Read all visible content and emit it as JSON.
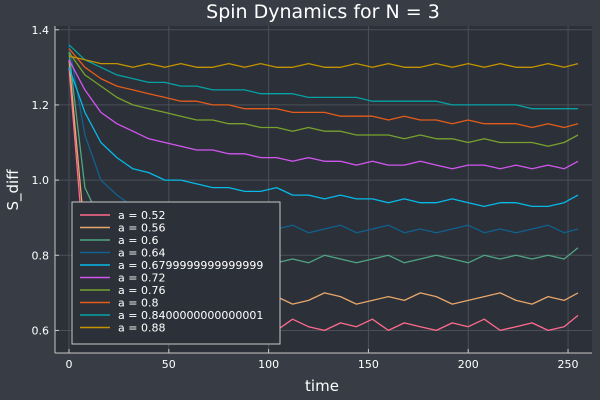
{
  "chart_data": {
    "type": "line",
    "title": "Spin Dynamics for N = 3",
    "xlabel": "time",
    "ylabel": "S_diff",
    "xlim": [
      -7,
      262
    ],
    "ylim": [
      0.54,
      1.41
    ],
    "xticks": [
      0,
      50,
      100,
      150,
      200,
      250
    ],
    "yticks": [
      0.6,
      0.8,
      1.0,
      1.2,
      1.4
    ],
    "ytick_labels": [
      "0.6",
      "0.8",
      "1.0",
      "1.2",
      "1.4"
    ],
    "grid": true,
    "legend": "bottom-left",
    "x": [
      0,
      8,
      16,
      24,
      32,
      40,
      48,
      56,
      64,
      72,
      80,
      88,
      96,
      104,
      112,
      120,
      128,
      136,
      144,
      152,
      160,
      168,
      176,
      184,
      192,
      200,
      208,
      216,
      224,
      232,
      240,
      248,
      255
    ],
    "series": [
      {
        "name": "a = 0.52",
        "color": "#ff6a8d",
        "values": [
          1.3,
          0.78,
          0.7,
          0.66,
          0.64,
          0.62,
          0.61,
          0.6,
          0.62,
          0.6,
          0.61,
          0.59,
          0.62,
          0.6,
          0.63,
          0.61,
          0.6,
          0.62,
          0.61,
          0.63,
          0.6,
          0.62,
          0.61,
          0.6,
          0.62,
          0.61,
          0.63,
          0.6,
          0.61,
          0.62,
          0.6,
          0.61,
          0.64
        ]
      },
      {
        "name": "a = 0.56",
        "color": "#e6a76c",
        "values": [
          1.32,
          0.85,
          0.76,
          0.72,
          0.7,
          0.69,
          0.68,
          0.67,
          0.68,
          0.69,
          0.67,
          0.66,
          0.68,
          0.69,
          0.67,
          0.68,
          0.7,
          0.69,
          0.67,
          0.68,
          0.69,
          0.68,
          0.7,
          0.69,
          0.67,
          0.68,
          0.69,
          0.7,
          0.68,
          0.67,
          0.69,
          0.68,
          0.7
        ]
      },
      {
        "name": "a = 0.6",
        "color": "#4fa583",
        "values": [
          1.34,
          0.98,
          0.89,
          0.84,
          0.82,
          0.8,
          0.79,
          0.78,
          0.79,
          0.78,
          0.78,
          0.79,
          0.77,
          0.78,
          0.79,
          0.78,
          0.8,
          0.79,
          0.78,
          0.79,
          0.8,
          0.78,
          0.79,
          0.8,
          0.79,
          0.78,
          0.8,
          0.79,
          0.8,
          0.79,
          0.8,
          0.79,
          0.82
        ]
      },
      {
        "name": "a = 0.64",
        "color": "#11618e",
        "values": [
          1.36,
          1.12,
          1.0,
          0.96,
          0.93,
          0.91,
          0.9,
          0.89,
          0.88,
          0.88,
          0.87,
          0.88,
          0.86,
          0.87,
          0.88,
          0.86,
          0.87,
          0.88,
          0.86,
          0.87,
          0.88,
          0.86,
          0.87,
          0.86,
          0.87,
          0.88,
          0.86,
          0.87,
          0.86,
          0.87,
          0.88,
          0.86,
          0.87
        ]
      },
      {
        "name": "a = 0.6799999999999999",
        "color": "#07b9e8",
        "values": [
          1.3,
          1.18,
          1.1,
          1.06,
          1.03,
          1.02,
          1.0,
          1.0,
          0.99,
          0.98,
          0.98,
          0.97,
          0.97,
          0.98,
          0.96,
          0.96,
          0.95,
          0.96,
          0.95,
          0.95,
          0.94,
          0.95,
          0.94,
          0.94,
          0.95,
          0.94,
          0.93,
          0.94,
          0.94,
          0.93,
          0.93,
          0.94,
          0.96
        ]
      },
      {
        "name": "a = 0.72",
        "color": "#d355f1",
        "values": [
          1.32,
          1.24,
          1.18,
          1.15,
          1.13,
          1.11,
          1.1,
          1.09,
          1.08,
          1.08,
          1.07,
          1.07,
          1.06,
          1.06,
          1.05,
          1.06,
          1.05,
          1.05,
          1.04,
          1.05,
          1.04,
          1.04,
          1.05,
          1.04,
          1.03,
          1.04,
          1.04,
          1.03,
          1.04,
          1.03,
          1.04,
          1.03,
          1.05
        ]
      },
      {
        "name": "a = 0.76",
        "color": "#78a22d",
        "values": [
          1.34,
          1.28,
          1.25,
          1.22,
          1.2,
          1.19,
          1.18,
          1.17,
          1.16,
          1.16,
          1.15,
          1.15,
          1.14,
          1.14,
          1.13,
          1.14,
          1.13,
          1.13,
          1.12,
          1.12,
          1.12,
          1.11,
          1.12,
          1.11,
          1.11,
          1.1,
          1.11,
          1.1,
          1.1,
          1.1,
          1.09,
          1.1,
          1.12
        ]
      },
      {
        "name": "a = 0.8",
        "color": "#e45c1b",
        "values": [
          1.35,
          1.3,
          1.27,
          1.25,
          1.24,
          1.23,
          1.22,
          1.21,
          1.21,
          1.2,
          1.2,
          1.19,
          1.19,
          1.19,
          1.18,
          1.18,
          1.18,
          1.17,
          1.17,
          1.17,
          1.16,
          1.17,
          1.16,
          1.16,
          1.15,
          1.16,
          1.15,
          1.15,
          1.15,
          1.14,
          1.15,
          1.14,
          1.15
        ]
      },
      {
        "name": "a = 0.8400000000000001",
        "color": "#05a2a5",
        "values": [
          1.36,
          1.32,
          1.3,
          1.28,
          1.27,
          1.26,
          1.26,
          1.25,
          1.25,
          1.24,
          1.24,
          1.24,
          1.23,
          1.23,
          1.23,
          1.22,
          1.22,
          1.22,
          1.22,
          1.21,
          1.21,
          1.21,
          1.21,
          1.21,
          1.2,
          1.2,
          1.2,
          1.2,
          1.2,
          1.19,
          1.19,
          1.19,
          1.19
        ]
      },
      {
        "name": "a = 0.88",
        "color": "#c49300",
        "values": [
          1.33,
          1.32,
          1.31,
          1.31,
          1.3,
          1.31,
          1.3,
          1.31,
          1.3,
          1.3,
          1.31,
          1.3,
          1.31,
          1.3,
          1.3,
          1.31,
          1.3,
          1.3,
          1.31,
          1.3,
          1.31,
          1.3,
          1.3,
          1.31,
          1.3,
          1.31,
          1.3,
          1.31,
          1.3,
          1.3,
          1.31,
          1.3,
          1.31
        ]
      }
    ]
  }
}
